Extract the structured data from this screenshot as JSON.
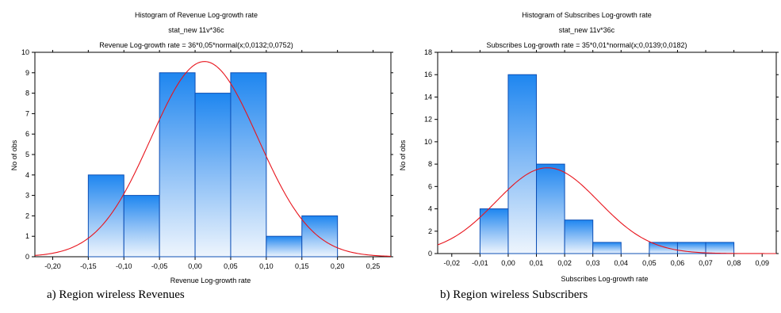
{
  "chart_data": [
    {
      "type": "bar",
      "title": "Histogram of Revenue Log-growth rate",
      "subtitle": "stat_new 11v*36c",
      "formula": "Revenue Log-growth rate = 36*0,05*normal(x;0,0132;0,0752)",
      "xlabel": "Revenue Log-growth rate",
      "ylabel": "No of obs",
      "xlim": [
        -0.225,
        0.275
      ],
      "ylim": [
        0,
        10
      ],
      "xticks": [
        -0.2,
        -0.15,
        -0.1,
        -0.05,
        0.0,
        0.05,
        0.1,
        0.15,
        0.2,
        0.25
      ],
      "xtick_labels": [
        "-0,20",
        "-0,15",
        "-0,10",
        "-0,05",
        "0,00",
        "0,05",
        "0,10",
        "0,15",
        "0,20",
        "0,25"
      ],
      "yticks": [
        0,
        1,
        2,
        3,
        4,
        5,
        6,
        7,
        8,
        9,
        10
      ],
      "ytick_labels": [
        "0",
        "1",
        "2",
        "3",
        "4",
        "5",
        "6",
        "7",
        "8",
        "9",
        "10"
      ],
      "bins": [
        {
          "from": -0.15,
          "to": -0.1,
          "count": 4
        },
        {
          "from": -0.1,
          "to": -0.05,
          "count": 3
        },
        {
          "from": -0.05,
          "to": 0.0,
          "count": 9
        },
        {
          "from": 0.0,
          "to": 0.05,
          "count": 8
        },
        {
          "from": 0.05,
          "to": 0.1,
          "count": 9
        },
        {
          "from": 0.1,
          "to": 0.15,
          "count": 1
        },
        {
          "from": 0.15,
          "to": 0.2,
          "count": 2
        }
      ],
      "fit": {
        "n": 36,
        "binwidth": 0.05,
        "mean": 0.0132,
        "sd": 0.0752
      },
      "bar_color": "#1e86f0",
      "curve_color": "#e8141c",
      "caption": "a) Region wireless Revenues"
    },
    {
      "type": "bar",
      "title": "Histogram of Subscribes Log-growth rate",
      "subtitle": "stat_new 11v*36c",
      "formula": "Subscribes Log-growth rate = 35*0,01*normal(x;0,0139;0,0182)",
      "xlabel": "Subscribes Log-growth rate",
      "ylabel": "No of obs",
      "xlim": [
        -0.025,
        0.095
      ],
      "ylim": [
        0,
        18
      ],
      "xticks": [
        -0.02,
        -0.01,
        0.0,
        0.01,
        0.02,
        0.03,
        0.04,
        0.05,
        0.06,
        0.07,
        0.08,
        0.09
      ],
      "xtick_labels": [
        "-0,02",
        "-0,01",
        "0,00",
        "0,01",
        "0,02",
        "0,03",
        "0,04",
        "0,05",
        "0,06",
        "0,07",
        "0,08",
        "0,09"
      ],
      "yticks": [
        0,
        2,
        4,
        6,
        8,
        10,
        12,
        14,
        16,
        18
      ],
      "ytick_labels": [
        "0",
        "2",
        "4",
        "6",
        "8",
        "10",
        "12",
        "14",
        "16",
        "18"
      ],
      "bins": [
        {
          "from": -0.01,
          "to": 0.0,
          "count": 4
        },
        {
          "from": 0.0,
          "to": 0.01,
          "count": 16
        },
        {
          "from": 0.01,
          "to": 0.02,
          "count": 8
        },
        {
          "from": 0.02,
          "to": 0.03,
          "count": 3
        },
        {
          "from": 0.03,
          "to": 0.04,
          "count": 1
        },
        {
          "from": 0.04,
          "to": 0.05,
          "count": 0
        },
        {
          "from": 0.05,
          "to": 0.06,
          "count": 1
        },
        {
          "from": 0.06,
          "to": 0.07,
          "count": 1
        },
        {
          "from": 0.07,
          "to": 0.08,
          "count": 1
        }
      ],
      "fit": {
        "n": 35,
        "binwidth": 0.01,
        "mean": 0.0139,
        "sd": 0.0182
      },
      "bar_color": "#1e86f0",
      "curve_color": "#e8141c",
      "caption": "b) Region wireless Subscribers"
    }
  ]
}
